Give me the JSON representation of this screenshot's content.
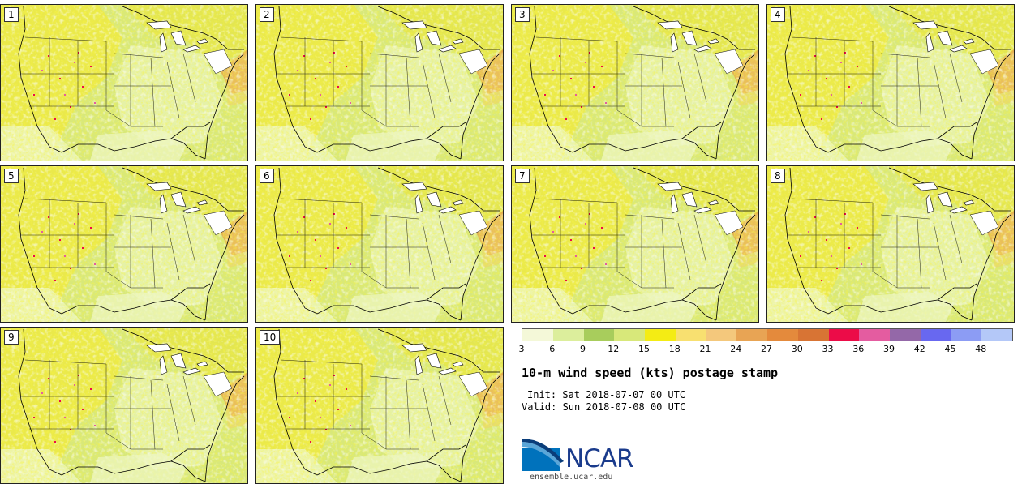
{
  "panels": [
    {
      "label": "1"
    },
    {
      "label": "2"
    },
    {
      "label": "3"
    },
    {
      "label": "4"
    },
    {
      "label": "5"
    },
    {
      "label": "6"
    },
    {
      "label": "7"
    },
    {
      "label": "8"
    },
    {
      "label": "9"
    },
    {
      "label": "10"
    }
  ],
  "colorbar": {
    "ticks": [
      "3",
      "6",
      "9",
      "12",
      "15",
      "18",
      "21",
      "24",
      "27",
      "30",
      "33",
      "36",
      "39",
      "42",
      "45",
      "48"
    ],
    "colors": [
      "#f4f8d8",
      "#dcee9c",
      "#a8cd5c",
      "#d8e87a",
      "#f4ec14",
      "#f8e070",
      "#f4c87c",
      "#e8a454",
      "#e48a3c",
      "#d87434",
      "#ec0c48",
      "#e45ca0",
      "#9468a8",
      "#6868f0",
      "#8c9cf4",
      "#b4c8f8"
    ]
  },
  "title": "10-m wind speed (kts) postage stamp",
  "init": "Init: Sat 2018-07-07 00 UTC",
  "valid": "Valid: Sun 2018-07-08 00 UTC",
  "logo": {
    "text": "NCAR",
    "site": "ensemble.ucar.edu"
  }
}
